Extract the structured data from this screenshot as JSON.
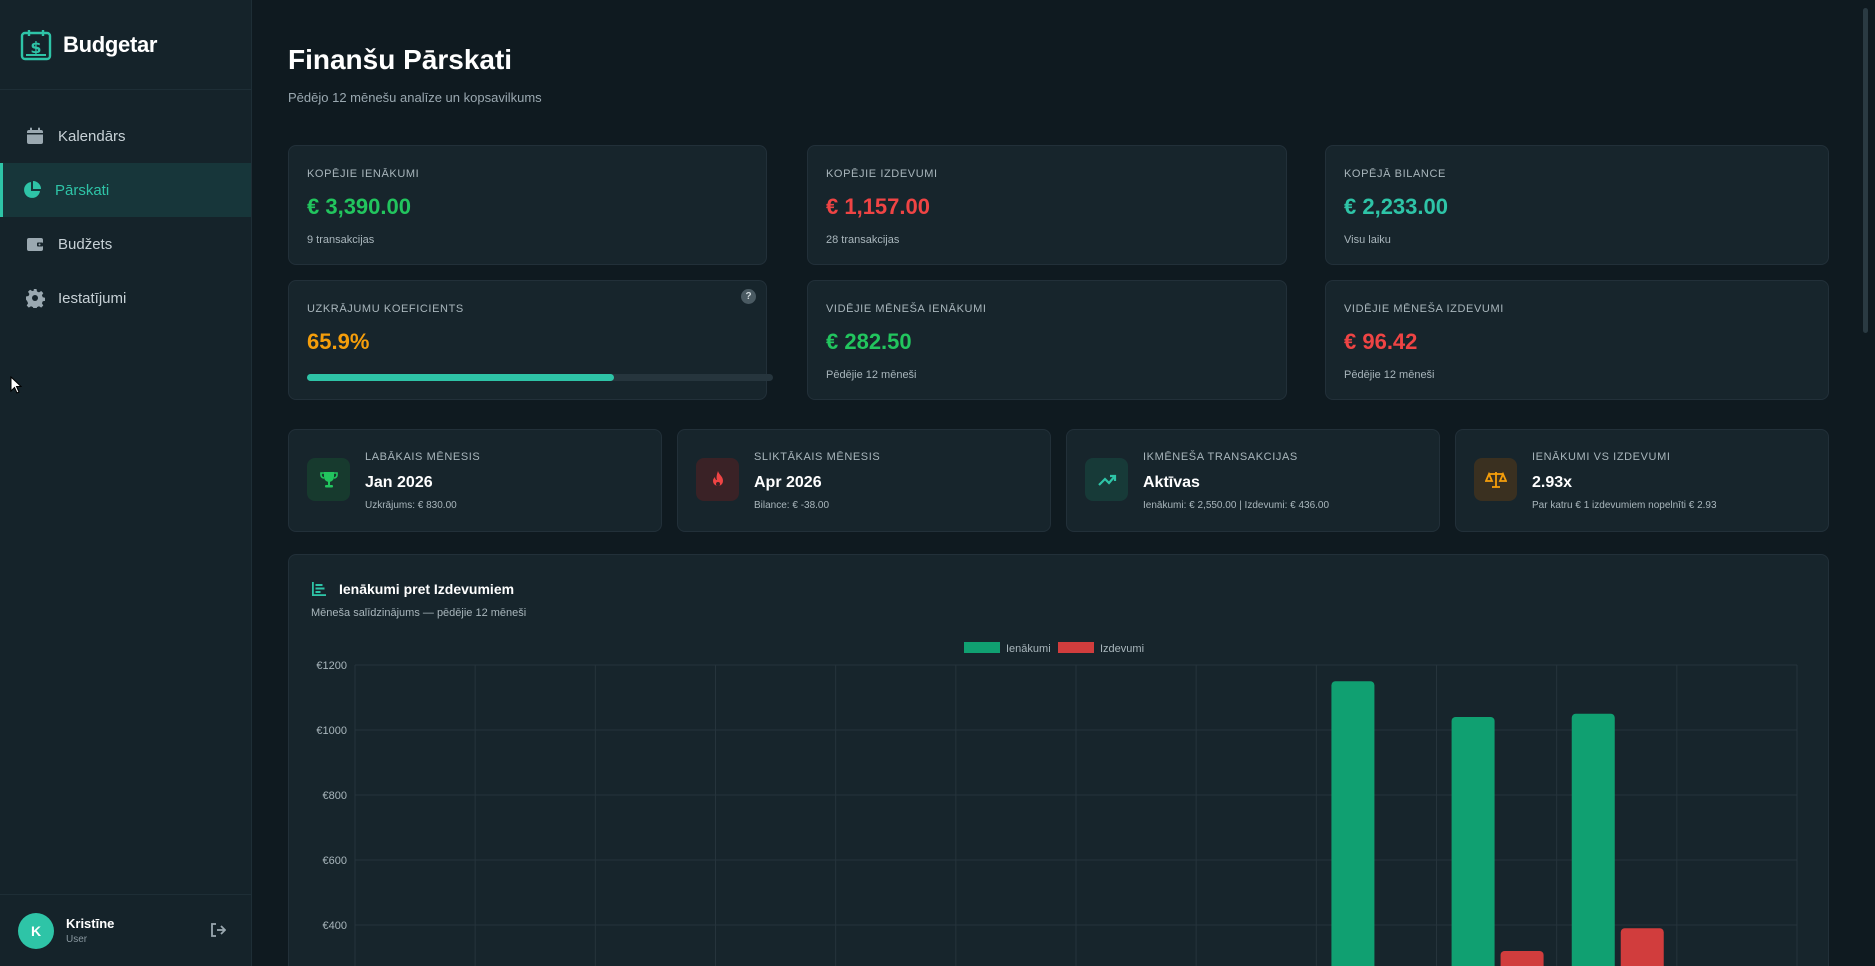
{
  "app": {
    "name": "Budgetar"
  },
  "nav": [
    {
      "label": "Kalendārs",
      "icon": "calendar-icon"
    },
    {
      "label": "Pārskati",
      "icon": "pie-chart-icon",
      "active": true
    },
    {
      "label": "Budžets",
      "icon": "wallet-icon"
    },
    {
      "label": "Iestatījumi",
      "icon": "gear-icon"
    }
  ],
  "user": {
    "initial": "K",
    "name": "Kristīne",
    "role": "User"
  },
  "page": {
    "title": "Finanšu Pārskati",
    "subtitle": "Pēdējo 12 mēnešu analīze un kopsavilkums"
  },
  "stats": {
    "total_income": {
      "label": "Kopējie ienākumi",
      "value": "€ 3,390.00",
      "note": "9 transakcijas"
    },
    "total_expense": {
      "label": "Kopējie izdevumi",
      "value": "€ 1,157.00",
      "note": "28 transakcijas"
    },
    "total_balance": {
      "label": "Kopējā bilance",
      "value": "€ 2,233.00",
      "note": "Visu laiku"
    },
    "savings_ratio": {
      "label": "Uzkrājumu koeficients",
      "value": "65.9%",
      "progress_percent": 65.9
    },
    "avg_income": {
      "label": "Vidējie mēneša ienākumi",
      "value": "€ 282.50",
      "note": "Pēdējie 12 mēneši"
    },
    "avg_expense": {
      "label": "Vidējie mēneša izdevumi",
      "value": "€ 96.42",
      "note": "Pēdējie 12 mēneši"
    }
  },
  "highlights": {
    "best_month": {
      "label": "Labākais mēnesis",
      "value": "Jan 2026",
      "note": "Uzkrājums: € 830.00",
      "icon": "trophy-icon",
      "color": "#22c55e"
    },
    "worst_month": {
      "label": "Sliktākais mēnesis",
      "value": "Apr 2026",
      "note": "Bilance: € -38.00",
      "icon": "flame-icon",
      "color": "#ef4444"
    },
    "month_transactions": {
      "label": "Ikmēneša transakcijas",
      "value": "Aktīvas",
      "note": "Ienākumi: € 2,550.00 | Izdevumi: € 436.00",
      "icon": "trend-up-icon",
      "color": "#2ec4a7"
    },
    "income_vs_expense": {
      "label": "Ienākumi vs Izdevumi",
      "value": "2.93x",
      "note": "Par katru € 1 izdevumiem nopelnīti € 2.93",
      "icon": "scales-icon",
      "color": "#f59e0b"
    }
  },
  "chart_data": {
    "type": "bar",
    "title": "Ienākumi pret Izdevumiem",
    "subtitle": "Mēneša salīdzinājums — pēdējie 12 mēneši",
    "ylim": [
      0,
      1200
    ],
    "yticks": [
      "€1200",
      "€1000",
      "€800",
      "€600",
      "€400"
    ],
    "ytick_values": [
      1200,
      1000,
      800,
      600,
      400
    ],
    "visible_min": 400,
    "legend_position": "top-center",
    "grid": true,
    "series": [
      {
        "name": "Ienākumi",
        "color": "#10a071",
        "values": [
          0,
          0,
          0,
          0,
          0,
          0,
          0,
          0,
          1150,
          1040,
          1050,
          0
        ]
      },
      {
        "name": "Izdevumi",
        "color": "#d13d3d",
        "values": [
          0,
          0,
          0,
          0,
          0,
          0,
          0,
          0,
          0,
          320,
          390,
          0
        ]
      }
    ]
  },
  "colors": {
    "accent": "#2ec4a7",
    "income": "#22c55e",
    "expense": "#ef4444",
    "warning": "#f59e0b"
  }
}
